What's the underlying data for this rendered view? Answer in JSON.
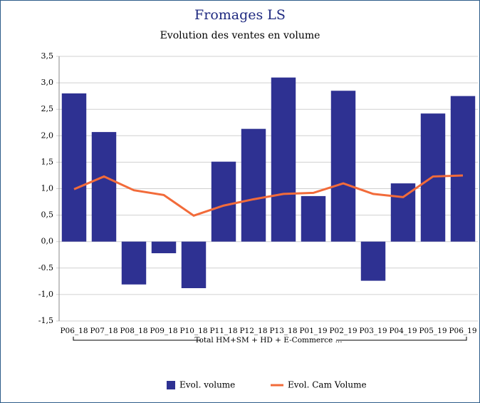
{
  "chart_data": {
    "type": "bar_line",
    "title": "Fromages LS",
    "subtitle": "Evolution des ventes en volume",
    "categories": [
      "P06_18",
      "P07_18",
      "P08_18",
      "P09_18",
      "P10_18",
      "P11_18",
      "P12_18",
      "P13_18",
      "P01_19",
      "P02_19",
      "P03_19",
      "P04_19",
      "P05_19",
      "P06_19"
    ],
    "group_label": "Total HM+SM + HD + E-Commerce ...",
    "series": [
      {
        "name": "Evol. volume",
        "type": "bar",
        "color": "#2e3192",
        "values": [
          2.8,
          2.07,
          -0.81,
          -0.22,
          -0.88,
          1.51,
          2.13,
          3.1,
          0.86,
          2.85,
          -0.74,
          1.1,
          2.42,
          2.75
        ]
      },
      {
        "name": "Evol. Cam Volume",
        "type": "line",
        "color": "#f26b3a",
        "values": [
          0.99,
          1.23,
          0.97,
          0.88,
          0.49,
          0.68,
          0.8,
          0.9,
          0.92,
          1.1,
          0.9,
          0.84,
          1.23,
          1.25
        ]
      }
    ],
    "ylim": [
      -1.5,
      3.5
    ],
    "yticks": [
      {
        "value": -1.5,
        "label": "-1,5"
      },
      {
        "value": -1,
        "label": "-1,0"
      },
      {
        "value": -0.5,
        "label": "-0.5"
      },
      {
        "value": 0,
        "label": "0,0"
      },
      {
        "value": 0.5,
        "label": "0,5"
      },
      {
        "value": 1,
        "label": "1,0"
      },
      {
        "value": 1.5,
        "label": "1,5"
      },
      {
        "value": 2,
        "label": "2,0"
      },
      {
        "value": 2.5,
        "label": "2,5"
      },
      {
        "value": 3,
        "label": "3,0"
      },
      {
        "value": 3.5,
        "label": "3,5"
      }
    ],
    "grid": true
  }
}
